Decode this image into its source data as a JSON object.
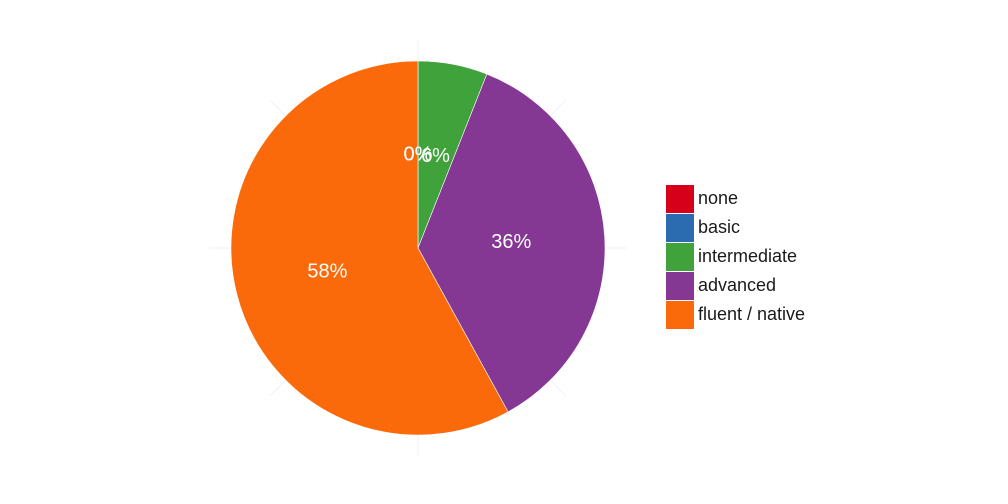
{
  "chart_data": {
    "type": "pie",
    "categories": [
      "none",
      "basic",
      "intermediate",
      "advanced",
      "fluent / native"
    ],
    "values": [
      0,
      0,
      6,
      36,
      58
    ],
    "labels": [
      "0%",
      "0%",
      "6%",
      "36%",
      "58%"
    ],
    "colors": [
      "#e41a1c",
      "#377eb8",
      "#4daf4a",
      "#984ea3",
      "#ff7f00"
    ],
    "legend": "right",
    "grid": true
  },
  "legend": {
    "items": [
      {
        "label": "none",
        "color": "#d7001b"
      },
      {
        "label": "basic",
        "color": "#2b6cb0"
      },
      {
        "label": "intermediate",
        "color": "#3fa23a"
      },
      {
        "label": "advanced",
        "color": "#843894"
      },
      {
        "label": "fluent / native",
        "color": "#fb6a0a"
      }
    ]
  }
}
